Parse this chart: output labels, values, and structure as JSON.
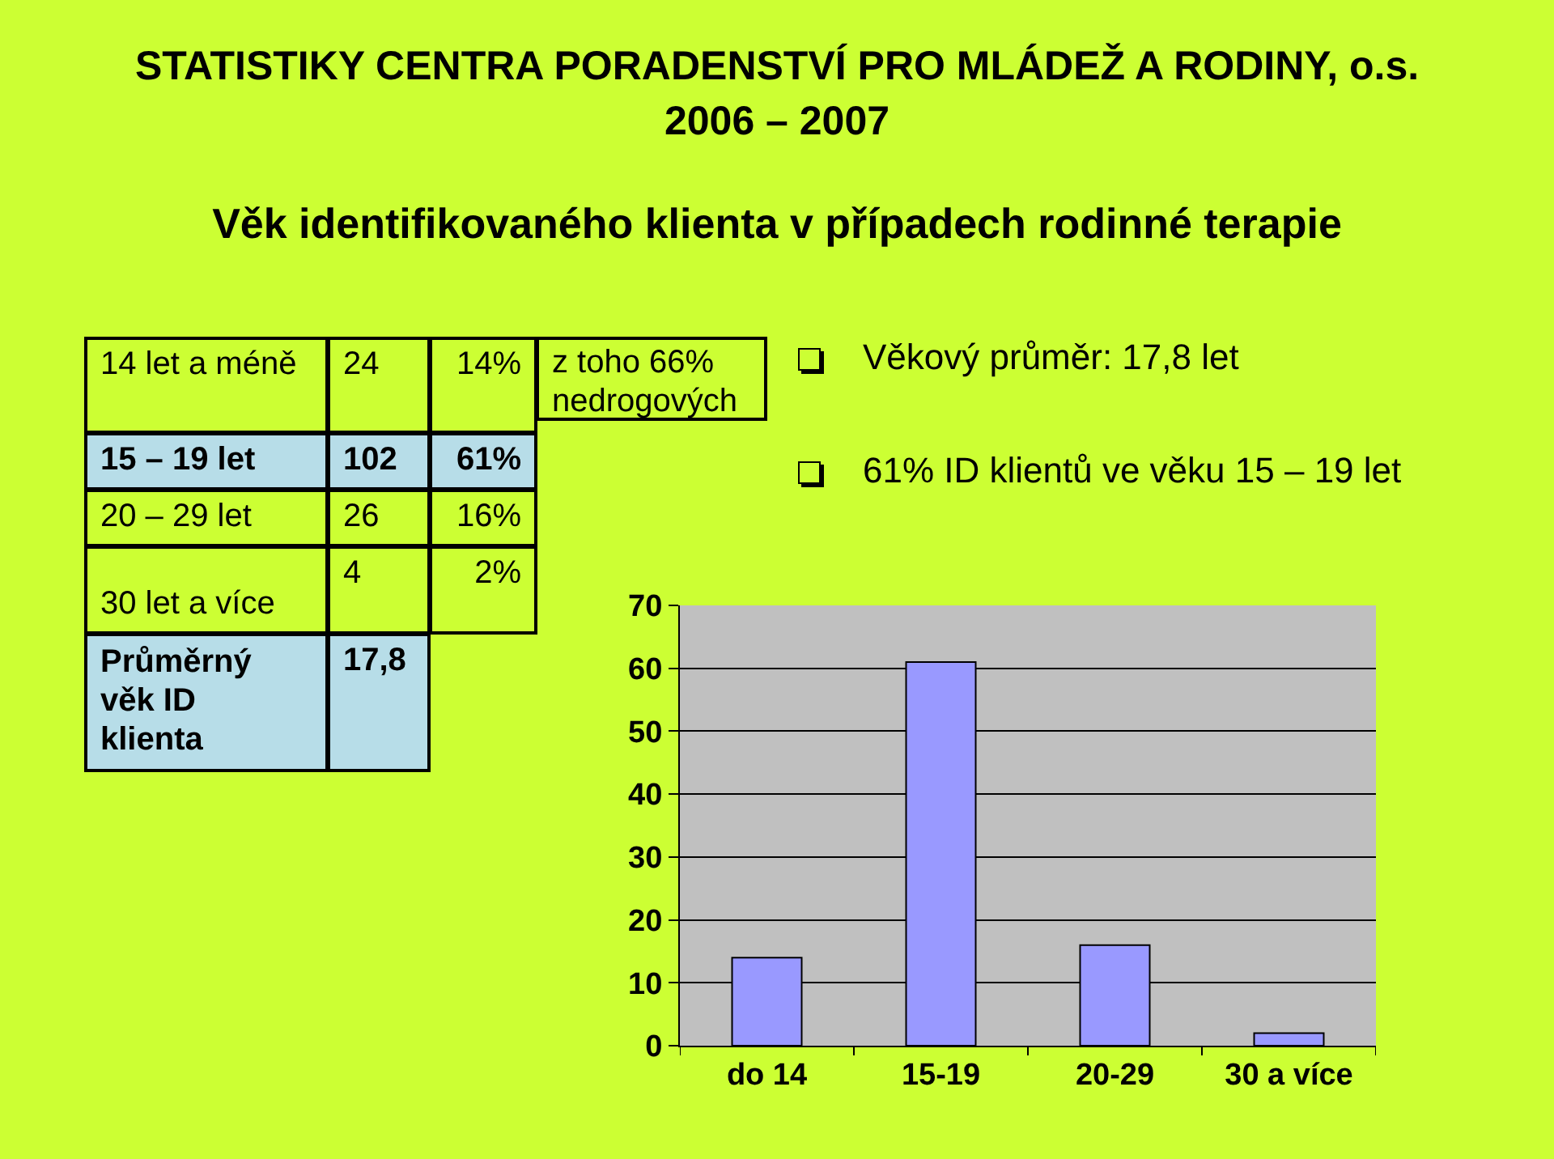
{
  "chart_data": {
    "type": "bar",
    "title": "STATISTIKY CENTRA PORADENSTVÍ PRO MLÁDEŽ A RODINY, o.s. 2006 – 2007",
    "subtitle": "Věk identifikovaného klienta v případech rodinné terapie",
    "annotations": [
      "14 let a méně",
      "24",
      "14%",
      "z toho 66% nedrogových",
      "15 – 19 let",
      "102",
      "61%",
      "20 – 29 let",
      "26",
      "16%",
      "30 let a více",
      "4",
      "2%",
      "Průměrný věk ID klienta",
      "17,8",
      "Věkový průměr: 17,8 let",
      "61% ID klientů ve věku 15 – 19 let"
    ],
    "categories": [
      "do 14",
      "15-19",
      "20-29",
      "30 a více"
    ],
    "values": [
      14,
      61,
      16,
      2
    ],
    "color": "#9999ff",
    "ylim": [
      0,
      70
    ],
    "yticks": [
      0,
      10,
      20,
      30,
      40,
      50,
      60,
      70
    ],
    "grid": "y"
  }
}
